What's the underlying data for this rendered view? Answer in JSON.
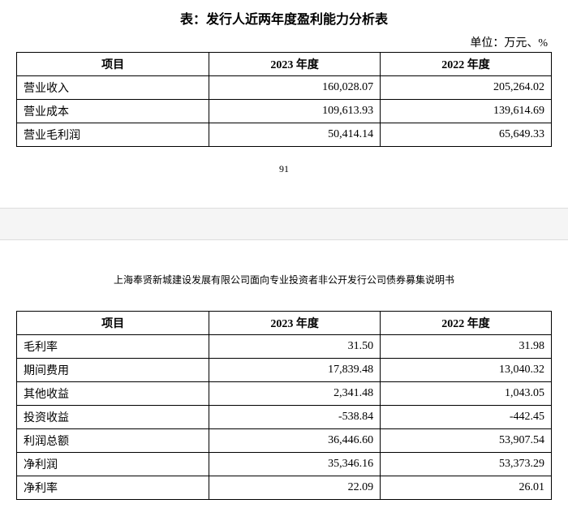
{
  "table1": {
    "title": "表：发行人近两年度盈利能力分析表",
    "unit": "单位：万元、%",
    "columns": [
      "项目",
      "2023 年度",
      "2022 年度"
    ],
    "rows": [
      {
        "label": "营业收入",
        "y2023": "160,028.07",
        "y2022": "205,264.02"
      },
      {
        "label": "营业成本",
        "y2023": "109,613.93",
        "y2022": "139,614.69"
      },
      {
        "label": "营业毛利润",
        "y2023": "50,414.14",
        "y2022": "65,649.33"
      }
    ]
  },
  "page_number": "91",
  "doc_header": "上海奉贤新城建设发展有限公司面向专业投资者非公开发行公司债券募集说明书",
  "table2": {
    "columns": [
      "项目",
      "2023 年度",
      "2022 年度"
    ],
    "rows": [
      {
        "label": "毛利率",
        "y2023": "31.50",
        "y2022": "31.98"
      },
      {
        "label": "期间费用",
        "y2023": "17,839.48",
        "y2022": "13,040.32"
      },
      {
        "label": "其他收益",
        "y2023": "2,341.48",
        "y2022": "1,043.05"
      },
      {
        "label": "投资收益",
        "y2023": "-538.84",
        "y2022": "-442.45"
      },
      {
        "label": "利润总额",
        "y2023": "36,446.60",
        "y2022": "53,907.54"
      },
      {
        "label": "净利润",
        "y2023": "35,346.16",
        "y2022": "53,373.29"
      },
      {
        "label": "净利率",
        "y2023": "22.09",
        "y2022": "26.01"
      }
    ]
  },
  "styling": {
    "font_family": "SimSun",
    "title_fontsize": 16,
    "body_fontsize": 14,
    "border_color": "#000000",
    "background_color": "#ffffff",
    "page_break_bg": "#f5f5f5"
  }
}
